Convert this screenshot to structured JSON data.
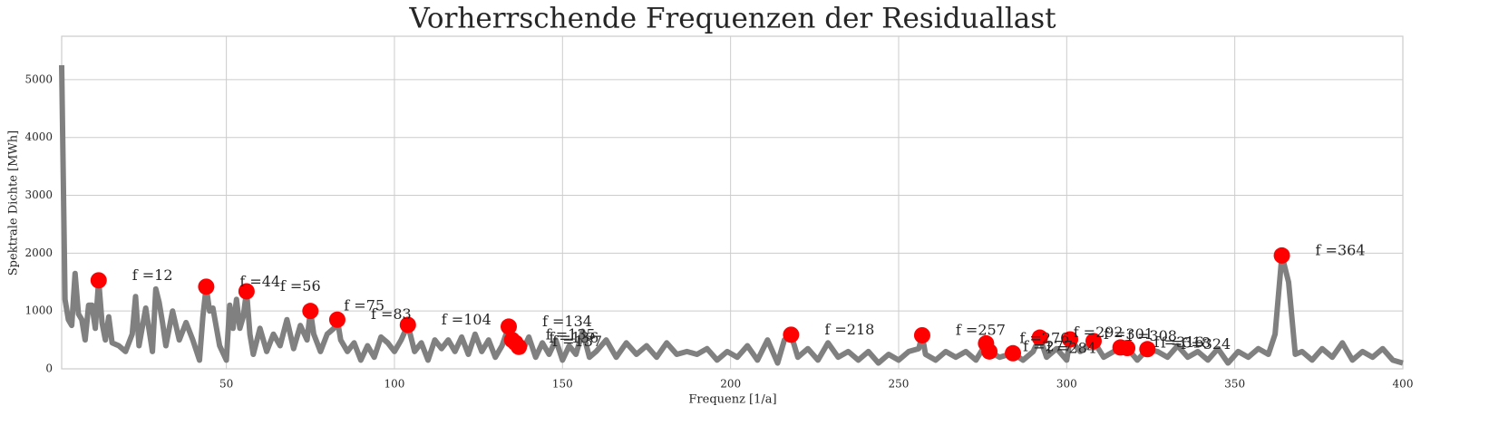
{
  "chart_data": {
    "type": "line",
    "title": "Vorherrschende Frequenzen der Residuallast",
    "xlabel": "Frequenz [1/a]",
    "ylabel": "Spektrale Dichte [MWh]",
    "xlim": [
      1,
      400
    ],
    "ylim": [
      0,
      5750
    ],
    "xticks": [
      50,
      100,
      150,
      200,
      250,
      300,
      350,
      400
    ],
    "yticks": [
      0,
      1000,
      2000,
      3000,
      4000,
      5000
    ],
    "grid": true,
    "line": {
      "color": "#808080",
      "x": [
        1,
        2,
        3,
        4,
        5,
        6,
        7,
        8,
        9,
        10,
        11,
        12,
        13,
        14,
        15,
        16,
        18,
        20,
        22,
        23,
        24,
        26,
        28,
        29,
        30,
        31,
        32,
        34,
        36,
        38,
        40,
        42,
        43,
        44,
        45,
        46,
        48,
        50,
        51,
        52,
        53,
        54,
        55,
        56,
        57,
        58,
        60,
        62,
        64,
        66,
        68,
        70,
        72,
        74,
        75,
        76,
        78,
        80,
        82,
        83,
        84,
        86,
        88,
        90,
        92,
        94,
        96,
        98,
        100,
        102,
        104,
        106,
        108,
        110,
        112,
        114,
        116,
        118,
        120,
        122,
        124,
        126,
        128,
        130,
        132,
        134,
        135,
        136,
        137,
        138,
        140,
        142,
        144,
        146,
        148,
        150,
        152,
        154,
        156,
        158,
        160,
        163,
        166,
        169,
        172,
        175,
        178,
        181,
        184,
        187,
        190,
        193,
        196,
        199,
        202,
        205,
        208,
        211,
        214,
        216,
        218,
        220,
        223,
        226,
        229,
        232,
        235,
        238,
        241,
        244,
        247,
        250,
        253,
        256,
        257,
        258,
        261,
        264,
        267,
        270,
        273,
        276,
        277,
        280,
        284,
        287,
        290,
        292,
        294,
        297,
        300,
        301,
        304,
        308,
        311,
        314,
        316,
        318,
        321,
        324,
        327,
        330,
        333,
        336,
        339,
        342,
        345,
        348,
        351,
        354,
        357,
        360,
        362,
        364,
        366,
        368,
        370,
        373,
        376,
        379,
        382,
        385,
        388,
        391,
        394,
        397,
        400
      ],
      "values": [
        5250,
        1200,
        850,
        750,
        1650,
        950,
        850,
        500,
        1100,
        1100,
        700,
        1530,
        800,
        500,
        900,
        450,
        400,
        300,
        600,
        1250,
        400,
        1050,
        300,
        1380,
        1150,
        800,
        400,
        1000,
        500,
        800,
        500,
        150,
        900,
        1420,
        1000,
        1050,
        400,
        150,
        1100,
        700,
        1200,
        700,
        900,
        1340,
        600,
        250,
        700,
        300,
        600,
        400,
        850,
        350,
        750,
        500,
        1000,
        600,
        300,
        600,
        700,
        850,
        500,
        300,
        450,
        150,
        400,
        200,
        550,
        450,
        300,
        500,
        760,
        300,
        450,
        150,
        500,
        350,
        500,
        300,
        550,
        250,
        600,
        300,
        500,
        200,
        400,
        730,
        500,
        450,
        380,
        300,
        550,
        200,
        450,
        250,
        500,
        150,
        400,
        250,
        650,
        200,
        300,
        500,
        200,
        450,
        250,
        400,
        200,
        450,
        250,
        300,
        250,
        350,
        150,
        300,
        200,
        400,
        150,
        500,
        100,
        500,
        590,
        200,
        350,
        150,
        450,
        200,
        300,
        150,
        300,
        100,
        250,
        150,
        300,
        350,
        580,
        250,
        150,
        300,
        200,
        300,
        150,
        440,
        300,
        200,
        270,
        150,
        300,
        540,
        200,
        350,
        150,
        510,
        300,
        480,
        200,
        300,
        370,
        360,
        150,
        340,
        300,
        200,
        400,
        200,
        300,
        150,
        350,
        100,
        300,
        200,
        350,
        250,
        600,
        1960,
        1500,
        250,
        300,
        150,
        350,
        200,
        450,
        150,
        300,
        200,
        350,
        150,
        100
      ]
    },
    "peaks": {
      "color": "#ff0000",
      "x": [
        12,
        44,
        56,
        75,
        83,
        104,
        134,
        135,
        136,
        137,
        218,
        257,
        276,
        277,
        284,
        292,
        301,
        308,
        316,
        318,
        324,
        364
      ],
      "values": [
        1530,
        1420,
        1340,
        1000,
        850,
        760,
        730,
        500,
        450,
        380,
        590,
        580,
        440,
        300,
        270,
        540,
        510,
        480,
        370,
        360,
        340,
        1960
      ],
      "labels": [
        "f =12",
        "f =44",
        "f =56",
        "f =75",
        "f =83",
        "f =104",
        "f =134",
        "f =135",
        "f =136",
        "f =137",
        "f =218",
        "f =257",
        "f =276",
        "f =277",
        "f =284",
        "f =292",
        "f =301",
        "f =308",
        "f =316",
        "f =318",
        "f =324",
        "f =364"
      ]
    }
  }
}
